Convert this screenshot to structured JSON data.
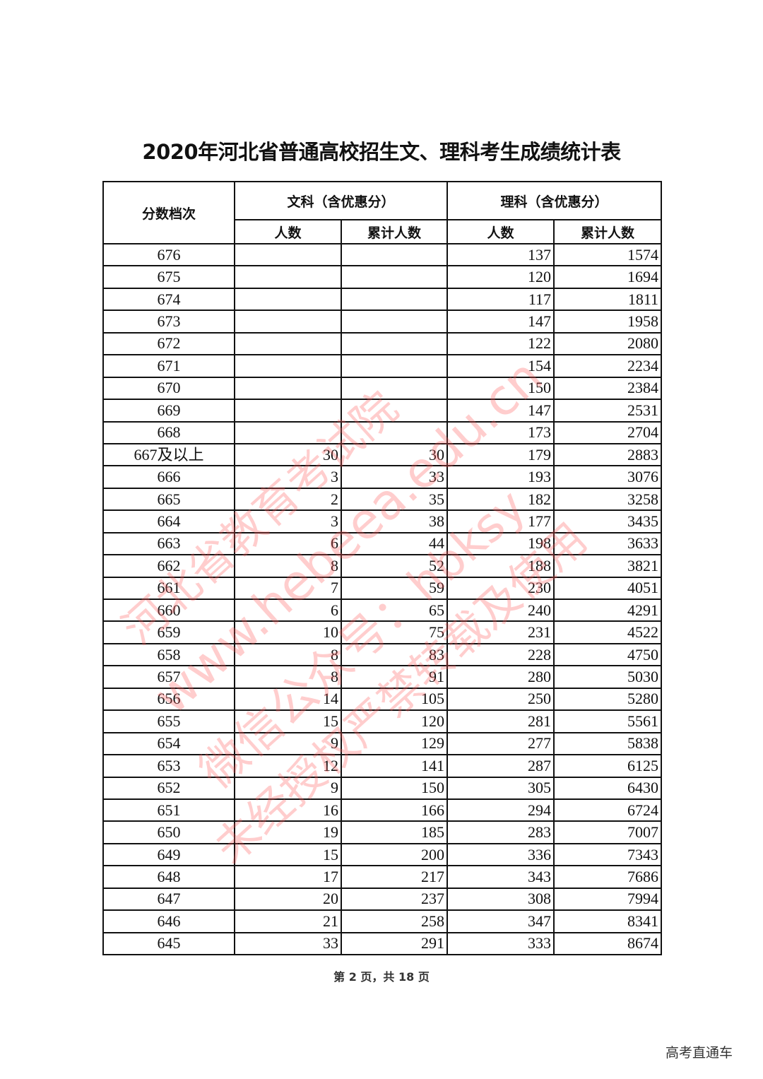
{
  "title": "2020年河北省普通高校招生文、理科考生成绩统计表",
  "table": {
    "col_score": "分数档次",
    "group_wen": "文科（含优惠分）",
    "group_li": "理科（含优惠分）",
    "col_count": "人数",
    "col_cumulative": "累计人数",
    "rows": [
      {
        "score": "676",
        "wen_n": "",
        "wen_cum": "",
        "li_n": "137",
        "li_cum": "1574"
      },
      {
        "score": "675",
        "wen_n": "",
        "wen_cum": "",
        "li_n": "120",
        "li_cum": "1694"
      },
      {
        "score": "674",
        "wen_n": "",
        "wen_cum": "",
        "li_n": "117",
        "li_cum": "1811"
      },
      {
        "score": "673",
        "wen_n": "",
        "wen_cum": "",
        "li_n": "147",
        "li_cum": "1958"
      },
      {
        "score": "672",
        "wen_n": "",
        "wen_cum": "",
        "li_n": "122",
        "li_cum": "2080"
      },
      {
        "score": "671",
        "wen_n": "",
        "wen_cum": "",
        "li_n": "154",
        "li_cum": "2234"
      },
      {
        "score": "670",
        "wen_n": "",
        "wen_cum": "",
        "li_n": "150",
        "li_cum": "2384"
      },
      {
        "score": "669",
        "wen_n": "",
        "wen_cum": "",
        "li_n": "147",
        "li_cum": "2531"
      },
      {
        "score": "668",
        "wen_n": "",
        "wen_cum": "",
        "li_n": "173",
        "li_cum": "2704"
      },
      {
        "score": "667及以上",
        "wen_n": "30",
        "wen_cum": "30",
        "li_n": "179",
        "li_cum": "2883"
      },
      {
        "score": "666",
        "wen_n": "3",
        "wen_cum": "33",
        "li_n": "193",
        "li_cum": "3076"
      },
      {
        "score": "665",
        "wen_n": "2",
        "wen_cum": "35",
        "li_n": "182",
        "li_cum": "3258"
      },
      {
        "score": "664",
        "wen_n": "3",
        "wen_cum": "38",
        "li_n": "177",
        "li_cum": "3435"
      },
      {
        "score": "663",
        "wen_n": "6",
        "wen_cum": "44",
        "li_n": "198",
        "li_cum": "3633"
      },
      {
        "score": "662",
        "wen_n": "8",
        "wen_cum": "52",
        "li_n": "188",
        "li_cum": "3821"
      },
      {
        "score": "661",
        "wen_n": "7",
        "wen_cum": "59",
        "li_n": "230",
        "li_cum": "4051"
      },
      {
        "score": "660",
        "wen_n": "6",
        "wen_cum": "65",
        "li_n": "240",
        "li_cum": "4291"
      },
      {
        "score": "659",
        "wen_n": "10",
        "wen_cum": "75",
        "li_n": "231",
        "li_cum": "4522"
      },
      {
        "score": "658",
        "wen_n": "8",
        "wen_cum": "83",
        "li_n": "228",
        "li_cum": "4750"
      },
      {
        "score": "657",
        "wen_n": "8",
        "wen_cum": "91",
        "li_n": "280",
        "li_cum": "5030"
      },
      {
        "score": "656",
        "wen_n": "14",
        "wen_cum": "105",
        "li_n": "250",
        "li_cum": "5280"
      },
      {
        "score": "655",
        "wen_n": "15",
        "wen_cum": "120",
        "li_n": "281",
        "li_cum": "5561"
      },
      {
        "score": "654",
        "wen_n": "9",
        "wen_cum": "129",
        "li_n": "277",
        "li_cum": "5838"
      },
      {
        "score": "653",
        "wen_n": "12",
        "wen_cum": "141",
        "li_n": "287",
        "li_cum": "6125"
      },
      {
        "score": "652",
        "wen_n": "9",
        "wen_cum": "150",
        "li_n": "305",
        "li_cum": "6430"
      },
      {
        "score": "651",
        "wen_n": "16",
        "wen_cum": "166",
        "li_n": "294",
        "li_cum": "6724"
      },
      {
        "score": "650",
        "wen_n": "19",
        "wen_cum": "185",
        "li_n": "283",
        "li_cum": "7007"
      },
      {
        "score": "649",
        "wen_n": "15",
        "wen_cum": "200",
        "li_n": "336",
        "li_cum": "7343"
      },
      {
        "score": "648",
        "wen_n": "17",
        "wen_cum": "217",
        "li_n": "343",
        "li_cum": "7686"
      },
      {
        "score": "647",
        "wen_n": "20",
        "wen_cum": "237",
        "li_n": "308",
        "li_cum": "7994"
      },
      {
        "score": "646",
        "wen_n": "21",
        "wen_cum": "258",
        "li_n": "347",
        "li_cum": "8341"
      },
      {
        "score": "645",
        "wen_n": "33",
        "wen_cum": "291",
        "li_n": "333",
        "li_cum": "8674"
      }
    ]
  },
  "footer": "第 2 页，共 18 页",
  "brand": "高考直通车",
  "watermark": {
    "color": "#ff5a5a",
    "lines": [
      "河北省教育考试院",
      "www.hebeea.edu.cn",
      "微信公众号：hbksy",
      "未经授权严禁转载及使用"
    ]
  }
}
